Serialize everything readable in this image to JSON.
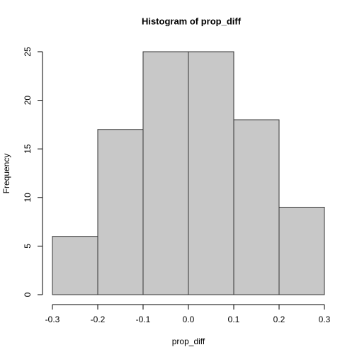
{
  "chart_data": {
    "type": "histogram",
    "title": "Histogram of prop_diff",
    "xlabel": "prop_diff",
    "ylabel": "Frequency",
    "bins": [
      -0.3,
      -0.2,
      -0.1,
      0,
      0.1,
      0.2,
      0.3
    ],
    "values": [
      6,
      17,
      25,
      25,
      18,
      9
    ],
    "color": "#c8c8c8",
    "xlim": [
      -0.3,
      0.3
    ],
    "xticks": [
      -0.3,
      -0.2,
      -0.1,
      {
        "value": 0,
        "label": "0.0"
      },
      0.1,
      0.2,
      0.3
    ],
    "ylim": [
      0,
      25
    ],
    "yticks": [
      0,
      5,
      10,
      15,
      20,
      25
    ]
  }
}
